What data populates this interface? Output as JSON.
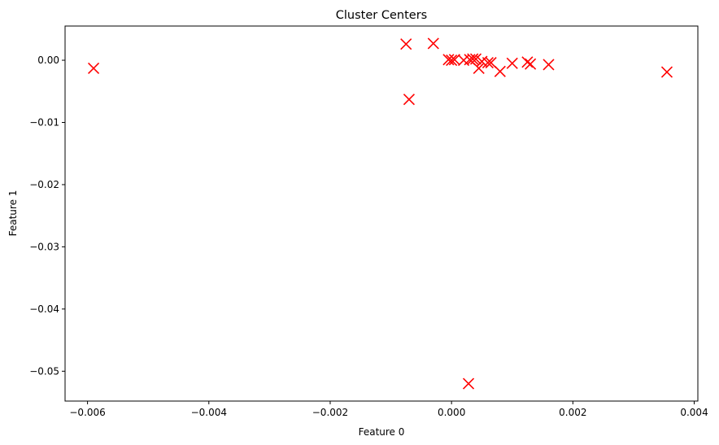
{
  "chart_data": {
    "type": "scatter",
    "title": "Cluster Centers",
    "xlabel": "Feature 0",
    "ylabel": "Feature 1",
    "xlim": [
      -0.00637,
      0.00406
    ],
    "ylim": [
      -0.0548,
      0.0055
    ],
    "x_ticks": [
      -0.006,
      -0.004,
      -0.002,
      0.0,
      0.002,
      0.004
    ],
    "x_tick_labels": [
      "−0.006",
      "−0.004",
      "−0.002",
      "0.000",
      "0.002",
      "0.004"
    ],
    "y_ticks": [
      0.0,
      -0.01,
      -0.02,
      -0.03,
      -0.04,
      -0.05
    ],
    "y_tick_labels": [
      "0.00",
      "−0.01",
      "−0.02",
      "−0.03",
      "−0.04",
      "−0.05"
    ],
    "grid": false,
    "marker": "x",
    "color": "#ff0000",
    "points": [
      {
        "x": -0.0059,
        "y": -0.0013
      },
      {
        "x": -0.00075,
        "y": 0.0026
      },
      {
        "x": -0.0003,
        "y": 0.0027
      },
      {
        "x": -0.0007,
        "y": -0.0063
      },
      {
        "x": -5e-05,
        "y": 0.0001
      },
      {
        "x": 0.0,
        "y": 0.0
      },
      {
        "x": 5e-05,
        "y": 0.0001
      },
      {
        "x": 0.0002,
        "y": 0.0
      },
      {
        "x": 0.0003,
        "y": 0.0001
      },
      {
        "x": 0.00035,
        "y": 0.0002
      },
      {
        "x": 0.0004,
        "y": 0.0002
      },
      {
        "x": 0.0005,
        "y": -0.0002
      },
      {
        "x": 0.0006,
        "y": -0.0004
      },
      {
        "x": 0.00065,
        "y": -0.0004
      },
      {
        "x": 0.00045,
        "y": -0.0013
      },
      {
        "x": 0.0008,
        "y": -0.0018
      },
      {
        "x": 0.001,
        "y": -0.0005
      },
      {
        "x": 0.00125,
        "y": -0.0003
      },
      {
        "x": 0.0013,
        "y": -0.0006
      },
      {
        "x": 0.0016,
        "y": -0.0007
      },
      {
        "x": 0.00355,
        "y": -0.0019
      },
      {
        "x": 0.00028,
        "y": -0.052
      }
    ]
  }
}
